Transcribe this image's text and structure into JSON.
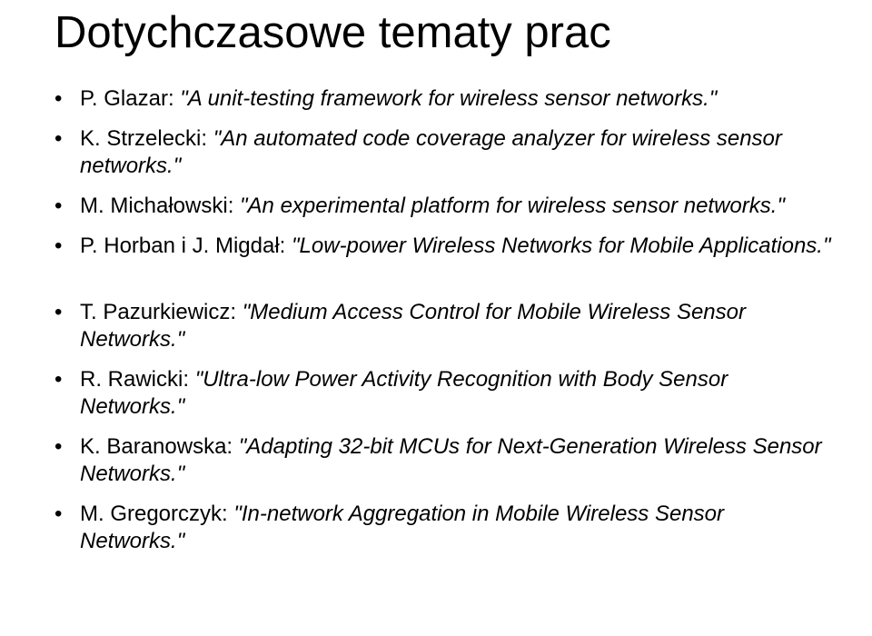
{
  "title": "Dotychczasowe tematy prac",
  "items": [
    {
      "prefix": "P. Glazar: ",
      "work": "\"A unit-testing framework for wireless sensor networks.\"",
      "gap": false
    },
    {
      "prefix": "K. Strzelecki: ",
      "work": "\"An automated code coverage analyzer for wireless sensor networks.\"",
      "gap": false
    },
    {
      "prefix": "M. Michałowski: ",
      "work": "\"An experimental platform for wireless sensor networks.\"",
      "gap": false
    },
    {
      "prefix": "P. Horban i J. Migdał: ",
      "work": "\"Low-power Wireless Networks for Mobile Applications.\"",
      "gap": true
    },
    {
      "prefix": "T. Pazurkiewicz: ",
      "work": "\"Medium Access Control for Mobile Wireless Sensor Networks.\"",
      "gap": false
    },
    {
      "prefix": "R. Rawicki: ",
      "work": "\"Ultra-low Power Activity Recognition with Body Sensor Networks.\"",
      "gap": false
    },
    {
      "prefix": "K. Baranowska: ",
      "work": "\"Adapting 32-bit MCUs for Next-Generation Wireless Sensor Networks.\"",
      "gap": false
    },
    {
      "prefix": "M. Gregorczyk: ",
      "work": "\"In-network Aggregation in Mobile Wireless Sensor Networks.\"",
      "gap": false
    }
  ]
}
